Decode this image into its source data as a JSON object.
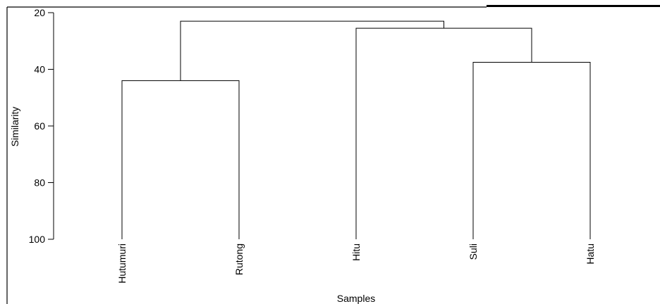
{
  "chart_data": {
    "type": "dendrogram",
    "ylabel": "Similarity",
    "xlabel": "Samples",
    "ylim": [
      20,
      100
    ],
    "yticks": [
      20,
      40,
      60,
      80,
      100
    ],
    "leaves": [
      "Hutumuri",
      "Rutong",
      "Hitu",
      "Suli",
      "Hatu"
    ],
    "merges": [
      {
        "id": "c1",
        "children": [
          "Hutumuri",
          "Rutong"
        ],
        "similarity": 44
      },
      {
        "id": "c2",
        "children": [
          "Suli",
          "Hatu"
        ],
        "similarity": 37.5
      },
      {
        "id": "c3",
        "children": [
          "Hitu",
          "c2"
        ],
        "similarity": 25.5
      },
      {
        "id": "c4",
        "children": [
          "c1",
          "c3"
        ],
        "similarity": 23
      }
    ],
    "grid": false
  }
}
